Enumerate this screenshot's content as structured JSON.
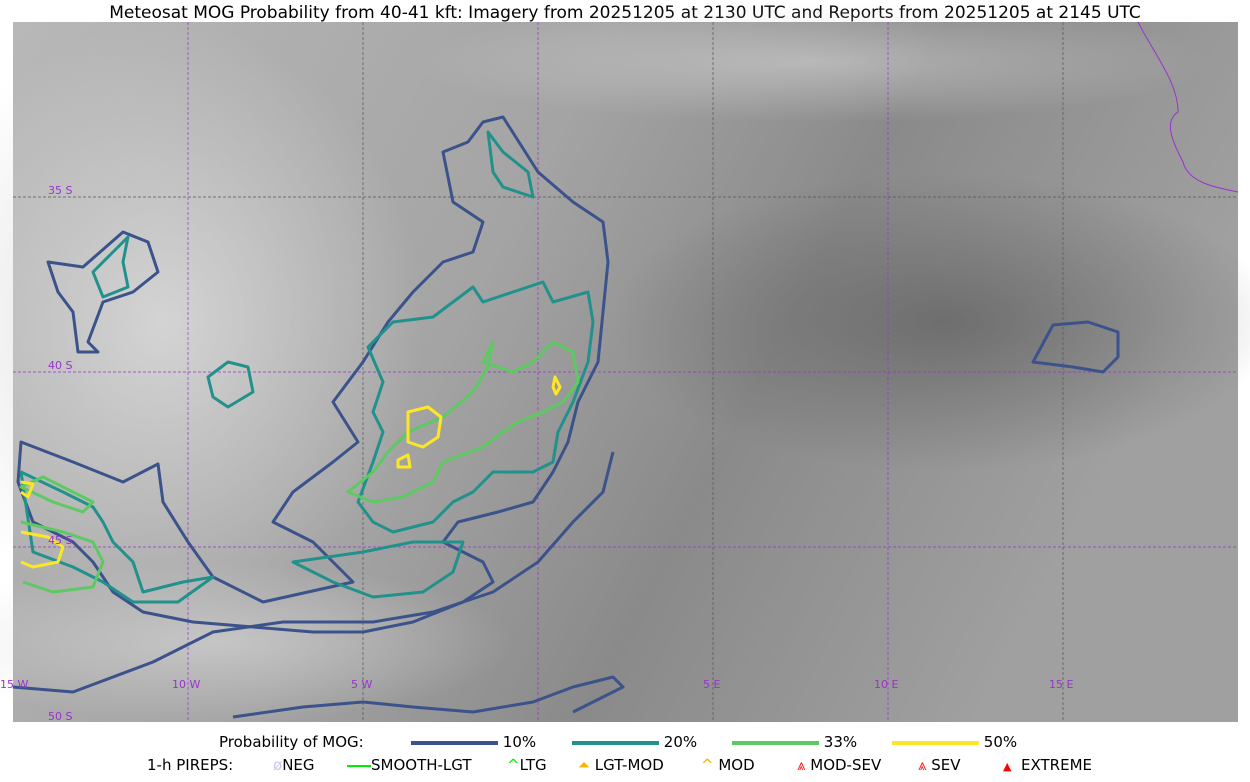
{
  "title": "Meteosat MOG Probability from 40-41 kft: Imagery from 20251205 at 2130 UTC and Reports from 20251205 at 2145 UTC",
  "map": {
    "lat_labels": [
      "35 S",
      "40 S",
      "45 S",
      "50 S"
    ],
    "lon_labels": [
      "15 W",
      "10 W",
      "5 W",
      "5 E",
      "10 E",
      "15 E"
    ],
    "grid_color": "#9933cc"
  },
  "legend": {
    "probability_title": "Probability of MOG:",
    "probability_levels": [
      {
        "label": "10%",
        "color": "#3b528b"
      },
      {
        "label": "20%",
        "color": "#21918c"
      },
      {
        "label": "33%",
        "color": "#5ec962"
      },
      {
        "label": "50%",
        "color": "#fde725"
      }
    ],
    "pireps_title": "1-h PIREPS:",
    "pireps": [
      {
        "label": "NEG",
        "color": "#c8c8f0",
        "icon": "neg-icon"
      },
      {
        "label": "SMOOTH-LGT",
        "color": "#00ee00",
        "icon": "line-icon"
      },
      {
        "label": "LTG",
        "color": "#00ee00",
        "icon": "caret-icon"
      },
      {
        "label": "LGT-MOD",
        "color": "#ffb000",
        "icon": "caret-bar-icon"
      },
      {
        "label": "MOD",
        "color": "#ffb000",
        "icon": "caret-icon"
      },
      {
        "label": "MOD-SEV",
        "color": "#ff2020",
        "icon": "double-caret-bar-icon"
      },
      {
        "label": "SEV",
        "color": "#ff2020",
        "icon": "double-caret-icon"
      },
      {
        "label": "EXTREME",
        "color": "#ff0000",
        "icon": "filled-triangle-icon"
      }
    ]
  }
}
